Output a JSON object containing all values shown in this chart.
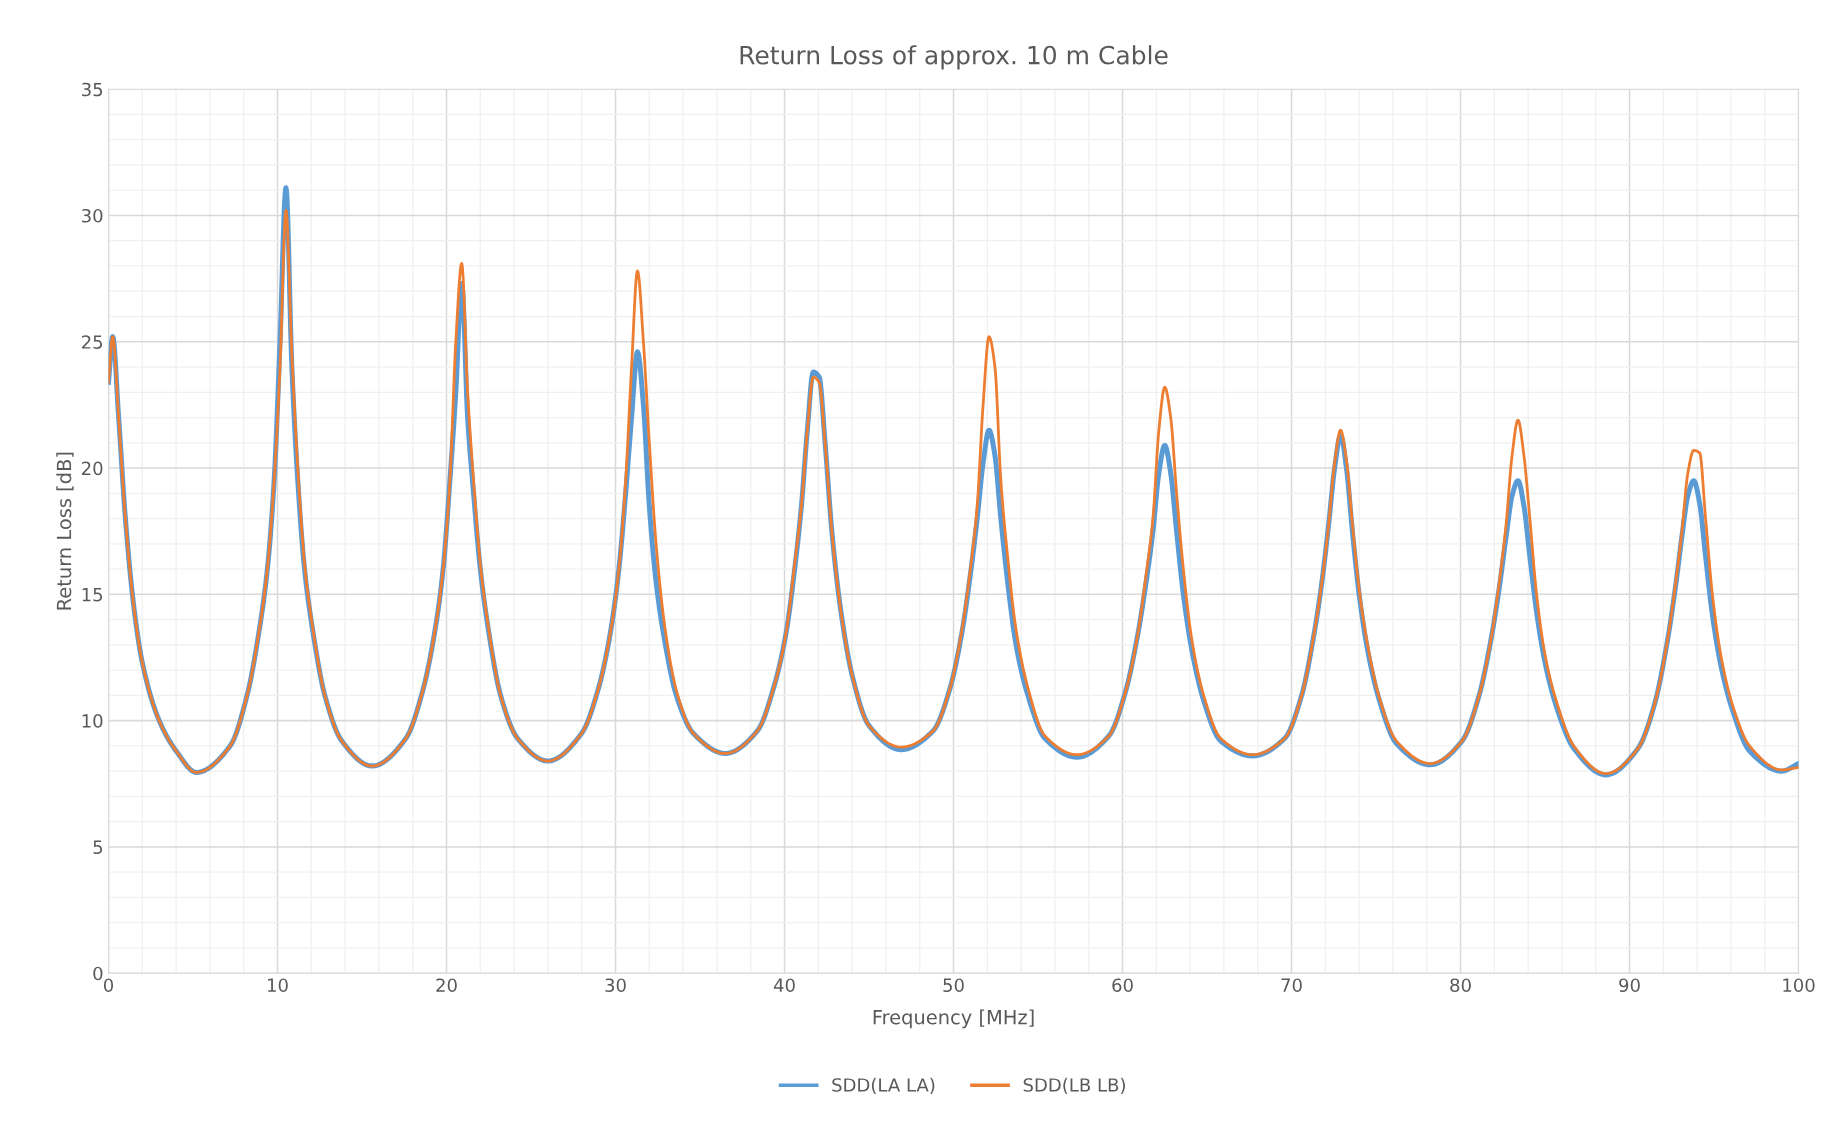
{
  "chart_data": {
    "type": "line",
    "title": "Return Loss of approx. 10 m Cable",
    "xlabel": "Frequency [MHz]",
    "ylabel": "Return Loss [dB]",
    "x": [
      0,
      0.25,
      0.6,
      1,
      1.5,
      2,
      3,
      4,
      5.2,
      7.2,
      8.2,
      8.9,
      9.4,
      9.8,
      10.15,
      10.5,
      10.85,
      11.2,
      11.6,
      12.1,
      12.8,
      13.8,
      15.6,
      17.6,
      18.6,
      19.3,
      19.8,
      20.2,
      20.55,
      20.9,
      21.25,
      21.6,
      22.0,
      22.5,
      23.2,
      24.2,
      26.0,
      28.0,
      29.0,
      29.7,
      30.2,
      30.6,
      30.95,
      31.3,
      31.65,
      32.0,
      32.4,
      32.9,
      33.6,
      34.6,
      36.5,
      38.4,
      39.4,
      40.1,
      40.6,
      41.0,
      41.35,
      41.7,
      42.05,
      42.4,
      42.8,
      43.3,
      44.0,
      45.0,
      46.9,
      48.8,
      49.8,
      50.5,
      51.0,
      51.4,
      51.75,
      52.1,
      52.45,
      52.8,
      53.2,
      53.7,
      54.4,
      55.4,
      57.3,
      59.2,
      60.2,
      60.9,
      61.4,
      61.8,
      62.15,
      62.5,
      62.85,
      63.2,
      63.6,
      64.1,
      64.8,
      65.8,
      67.7,
      69.6,
      70.6,
      71.3,
      71.8,
      72.2,
      72.55,
      72.9,
      73.25,
      73.6,
      74.0,
      74.5,
      75.2,
      76.2,
      78.2,
      80.1,
      81.1,
      81.8,
      82.3,
      82.7,
      83.05,
      83.4,
      83.75,
      84.1,
      84.5,
      85.0,
      85.7,
      86.7,
      88.6,
      90.5,
      91.5,
      92.2,
      92.7,
      93.1,
      93.45,
      93.8,
      94.15,
      94.5,
      94.9,
      95.4,
      96.1,
      97.1,
      99.0,
      100
    ],
    "series": [
      {
        "name": "SDD(LA LA)",
        "color": "#5b9bd5",
        "values": [
          23.4,
          25.2,
          22,
          18,
          14.5,
          12.3,
          10,
          8.8,
          7.95,
          9.0,
          11.0,
          13.5,
          16.0,
          19.5,
          25,
          31.1,
          24,
          19.5,
          16,
          13.5,
          11,
          9.2,
          8.2,
          9.3,
          11.2,
          13.5,
          16,
          19.5,
          23,
          27.3,
          22,
          19,
          16,
          13.5,
          11,
          9.3,
          8.4,
          9.5,
          11.3,
          13.5,
          16,
          19,
          22,
          24.6,
          22.5,
          18.5,
          15.5,
          13.2,
          11,
          9.5,
          8.7,
          9.6,
          11.4,
          13.5,
          16,
          18.5,
          21.5,
          23.8,
          23.6,
          21,
          17.5,
          14.5,
          11.8,
          9.8,
          8.85,
          9.6,
          11.3,
          13.5,
          15.8,
          18,
          20.2,
          21.5,
          20.5,
          18,
          15.5,
          13,
          11,
          9.3,
          8.55,
          9.4,
          11.2,
          13.4,
          15.5,
          17.5,
          19.8,
          20.9,
          19.8,
          17.5,
          15,
          12.8,
          10.8,
          9.2,
          8.6,
          9.3,
          11,
          13.3,
          15.5,
          17.8,
          20,
          21.3,
          20,
          17.5,
          15,
          12.8,
          10.8,
          9.1,
          8.25,
          9.2,
          11,
          13.2,
          15.3,
          17.3,
          18.9,
          19.5,
          18.5,
          16.5,
          14.3,
          12.3,
          10.5,
          8.9,
          7.85,
          8.9,
          10.7,
          13,
          15.2,
          17.3,
          18.9,
          19.5,
          18.6,
          16.5,
          14.2,
          12.2,
          10.4,
          8.8,
          8.0,
          8.3
        ]
      },
      {
        "name": "SDD(LB LB)",
        "color": "#ed7d31",
        "values": [
          23.4,
          25.2,
          22,
          18,
          14.5,
          12.3,
          10,
          8.8,
          7.95,
          9.0,
          11.0,
          13.5,
          16.0,
          19.5,
          24,
          30.2,
          24.5,
          20,
          16.2,
          13.6,
          11,
          9.2,
          8.2,
          9.3,
          11.2,
          13.5,
          16,
          19.5,
          25,
          28.1,
          23,
          19.5,
          16.2,
          13.6,
          11,
          9.3,
          8.4,
          9.5,
          11.3,
          13.5,
          16,
          19.5,
          24,
          27.8,
          25,
          21,
          17,
          13.8,
          11.2,
          9.5,
          8.7,
          9.6,
          11.4,
          13.5,
          16.2,
          18.5,
          21.5,
          23.6,
          23.4,
          21,
          17.5,
          14.5,
          11.8,
          9.8,
          8.95,
          9.6,
          11.3,
          13.6,
          16,
          18.5,
          22.5,
          25.2,
          24,
          19.5,
          16.5,
          13.6,
          11.3,
          9.4,
          8.65,
          9.4,
          11.2,
          13.4,
          15.8,
          18,
          21.5,
          23.2,
          22,
          19,
          16,
          13.2,
          11,
          9.3,
          8.65,
          9.3,
          11,
          13.3,
          15.5,
          17.8,
          20.2,
          21.5,
          20.3,
          17.8,
          15.2,
          13,
          10.9,
          9.2,
          8.3,
          9.2,
          11,
          13.2,
          15.5,
          17.8,
          20.5,
          21.9,
          20.5,
          18,
          15,
          12.6,
          10.7,
          9,
          7.9,
          8.9,
          10.7,
          13,
          15.3,
          17.5,
          19.8,
          20.7,
          20.6,
          18,
          15,
          12.6,
          10.6,
          9,
          8.05,
          8.15
        ]
      }
    ],
    "xlim": [
      0,
      100
    ],
    "xticks": [
      0,
      10,
      20,
      30,
      40,
      50,
      60,
      70,
      80,
      90,
      100
    ],
    "ylim": [
      0,
      35
    ],
    "yticks": [
      0,
      5,
      10,
      15,
      20,
      25,
      30,
      35
    ],
    "grid": true,
    "legend": "bottom",
    "marker": "none",
    "line_style": "solid"
  }
}
